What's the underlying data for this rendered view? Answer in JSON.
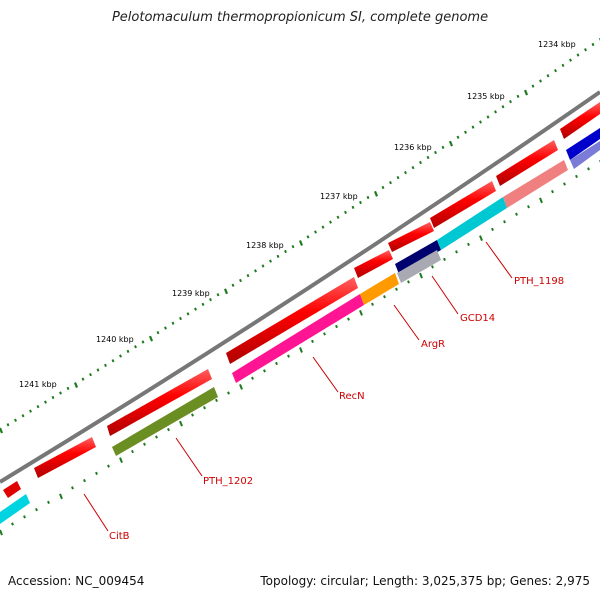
{
  "title": "Pelotomaculum thermopropionicum SI, complete genome",
  "footer": {
    "accession": "Accession: NC_009454",
    "summary": "Topology: circular; Length: 3,025,375 bp; Genes: 2,975"
  },
  "colors": {
    "backbone": "#7a7a7a",
    "ticks": "#1e7a1e",
    "label": "#cc0000",
    "tick_label": "#000000"
  },
  "scale": {
    "labels": [
      "1234 kbp",
      "1235 kbp",
      "1236 kbp",
      "1237 kbp",
      "1238 kbp",
      "1239 kbp",
      "1240 kbp",
      "1241 kbp"
    ]
  },
  "genes": [
    {
      "id": "g-pth1198-hlt",
      "name": "PTH_1198",
      "color": "#00c8d2",
      "strand": "inner",
      "label": "PTH_1198"
    },
    {
      "id": "g-gcd14",
      "name": "GCD14",
      "color": "#a9a9b4",
      "strand": "inner",
      "label": "GCD14"
    },
    {
      "id": "g-argr",
      "name": "ArgR",
      "color": "#ff9a00",
      "strand": "inner",
      "label": "ArgR"
    },
    {
      "id": "g-recn",
      "name": "RecN",
      "color": "#ff1493",
      "strand": "inner",
      "label": "RecN"
    },
    {
      "id": "g-pth1202",
      "name": "PTH_1202",
      "color": "#6b8e23",
      "strand": "inner",
      "label": "PTH_1202"
    },
    {
      "id": "g-citb",
      "name": "CitB",
      "color": "#00d0e0",
      "strand": "inner",
      "label": "CitB"
    }
  ]
}
